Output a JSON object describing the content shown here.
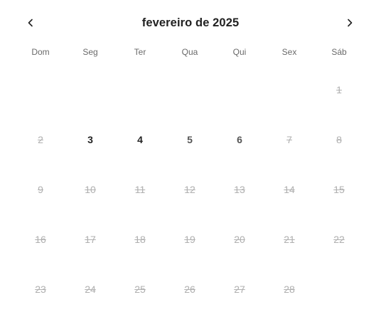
{
  "calendar": {
    "title": "fevereiro de 2025",
    "prev_icon": "chevron-left-icon",
    "next_icon": "chevron-right-icon",
    "weekdays": [
      "Dom",
      "Seg",
      "Ter",
      "Qua",
      "Qui",
      "Sex",
      "Sáb"
    ],
    "days": [
      {
        "label": "",
        "state": "empty"
      },
      {
        "label": "",
        "state": "empty"
      },
      {
        "label": "",
        "state": "empty"
      },
      {
        "label": "",
        "state": "empty"
      },
      {
        "label": "",
        "state": "empty"
      },
      {
        "label": "",
        "state": "empty"
      },
      {
        "label": "1",
        "state": "disabled"
      },
      {
        "label": "2",
        "state": "disabled"
      },
      {
        "label": "3",
        "state": "available"
      },
      {
        "label": "4",
        "state": "available"
      },
      {
        "label": "5",
        "state": "dim-available"
      },
      {
        "label": "6",
        "state": "dim-available"
      },
      {
        "label": "7",
        "state": "disabled"
      },
      {
        "label": "8",
        "state": "disabled"
      },
      {
        "label": "9",
        "state": "disabled"
      },
      {
        "label": "10",
        "state": "disabled"
      },
      {
        "label": "11",
        "state": "disabled"
      },
      {
        "label": "12",
        "state": "disabled"
      },
      {
        "label": "13",
        "state": "disabled"
      },
      {
        "label": "14",
        "state": "disabled"
      },
      {
        "label": "15",
        "state": "disabled"
      },
      {
        "label": "16",
        "state": "disabled"
      },
      {
        "label": "17",
        "state": "disabled"
      },
      {
        "label": "18",
        "state": "disabled"
      },
      {
        "label": "19",
        "state": "disabled"
      },
      {
        "label": "20",
        "state": "disabled"
      },
      {
        "label": "21",
        "state": "disabled"
      },
      {
        "label": "22",
        "state": "disabled"
      },
      {
        "label": "23",
        "state": "disabled"
      },
      {
        "label": "24",
        "state": "disabled"
      },
      {
        "label": "25",
        "state": "disabled"
      },
      {
        "label": "26",
        "state": "disabled"
      },
      {
        "label": "27",
        "state": "disabled"
      },
      {
        "label": "28",
        "state": "disabled"
      }
    ]
  }
}
